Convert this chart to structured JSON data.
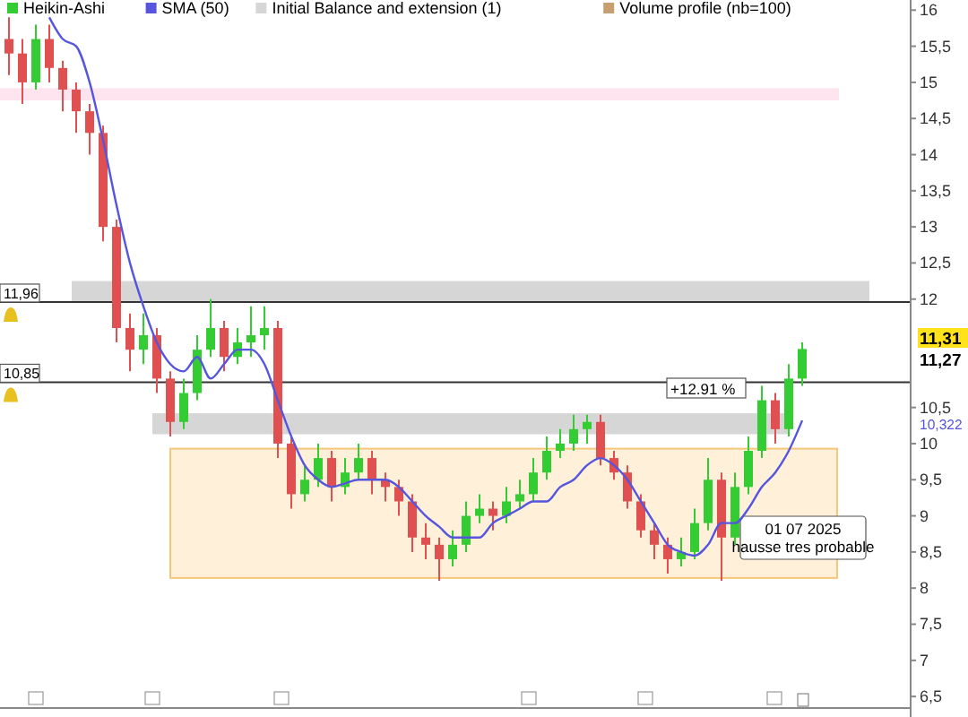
{
  "chart_data": {
    "type": "candlestick",
    "categories": [
      null,
      null,
      null,
      null,
      null,
      null,
      null,
      null,
      null,
      null,
      null,
      null,
      null,
      null,
      null,
      null,
      null,
      null,
      null,
      null,
      null,
      null,
      null,
      null,
      null,
      null,
      null,
      null,
      null,
      null,
      null,
      null,
      null,
      null,
      null,
      null,
      null,
      null,
      null,
      null,
      null,
      null,
      null,
      null,
      null,
      null,
      null,
      null,
      null,
      null,
      null,
      null,
      null,
      null,
      null,
      null,
      null,
      null,
      null,
      null
    ],
    "series": [
      {
        "name": "Heikin-Ashi",
        "color": "#33cc33",
        "colors": [
          "#e05050",
          "#e05050",
          "#33cc33",
          "#e05050",
          "#e05050",
          "#e05050",
          "#e05050",
          "#e05050",
          "#e05050",
          "#e05050",
          "#33cc33",
          "#e05050",
          "#e05050",
          "#33cc33",
          "#33cc33",
          "#33cc33",
          "#e05050",
          "#33cc33",
          "#33cc33",
          "#33cc33",
          "#e05050",
          "#e05050",
          "#33cc33",
          "#33cc33",
          "#e05050",
          "#33cc33",
          "#33cc33",
          "#e05050",
          "#e05050",
          "#e05050",
          "#e05050",
          "#e05050",
          "#e05050",
          "#33cc33",
          "#33cc33",
          "#33cc33",
          "#e05050",
          "#33cc33",
          "#33cc33",
          "#33cc33",
          "#33cc33",
          "#33cc33",
          "#33cc33",
          "#33cc33",
          "#e05050",
          "#e05050",
          "#e05050",
          "#e05050",
          "#e05050",
          "#e05050",
          "#33cc33",
          "#33cc33",
          "#33cc33",
          "#e05050",
          "#33cc33",
          "#33cc33",
          "#33cc33",
          "#e05050",
          "#33cc33",
          "#33cc33"
        ],
        "ohlc": [
          [
            15.6,
            15.9,
            15.1,
            15.4
          ],
          [
            15.4,
            15.6,
            14.7,
            15.0
          ],
          [
            15.0,
            15.8,
            14.9,
            15.6
          ],
          [
            15.6,
            15.8,
            15.0,
            15.2
          ],
          [
            15.2,
            15.3,
            14.6,
            14.9
          ],
          [
            14.9,
            15.0,
            14.3,
            14.6
          ],
          [
            14.6,
            14.7,
            14.0,
            14.3
          ],
          [
            14.3,
            14.4,
            12.8,
            13.0
          ],
          [
            13.0,
            13.1,
            11.4,
            11.6
          ],
          [
            11.6,
            11.8,
            11.0,
            11.3
          ],
          [
            11.3,
            11.8,
            11.1,
            11.5
          ],
          [
            11.5,
            11.6,
            10.7,
            10.9
          ],
          [
            10.9,
            11.0,
            10.1,
            10.3
          ],
          [
            10.3,
            10.9,
            10.2,
            10.7
          ],
          [
            10.7,
            11.5,
            10.6,
            11.3
          ],
          [
            11.3,
            12.0,
            11.2,
            11.6
          ],
          [
            11.6,
            11.7,
            11.0,
            11.2
          ],
          [
            11.2,
            11.6,
            11.1,
            11.4
          ],
          [
            11.4,
            11.9,
            11.2,
            11.5
          ],
          [
            11.5,
            11.9,
            11.3,
            11.6
          ],
          [
            11.6,
            11.7,
            9.8,
            10.0
          ],
          [
            10.0,
            10.1,
            9.1,
            9.3
          ],
          [
            9.3,
            9.7,
            9.2,
            9.5
          ],
          [
            9.5,
            10.0,
            9.4,
            9.8
          ],
          [
            9.8,
            9.9,
            9.2,
            9.4
          ],
          [
            9.4,
            9.8,
            9.3,
            9.6
          ],
          [
            9.6,
            10.0,
            9.5,
            9.8
          ],
          [
            9.8,
            9.9,
            9.3,
            9.5
          ],
          [
            9.5,
            9.6,
            9.2,
            9.4
          ],
          [
            9.4,
            9.5,
            9.0,
            9.2
          ],
          [
            9.2,
            9.3,
            8.5,
            8.7
          ],
          [
            8.7,
            8.9,
            8.4,
            8.6
          ],
          [
            8.6,
            8.7,
            8.1,
            8.4
          ],
          [
            8.4,
            8.8,
            8.3,
            8.6
          ],
          [
            8.6,
            9.2,
            8.5,
            9.0
          ],
          [
            9.0,
            9.3,
            8.9,
            9.1
          ],
          [
            9.1,
            9.2,
            8.8,
            9.0
          ],
          [
            9.0,
            9.4,
            8.9,
            9.2
          ],
          [
            9.2,
            9.5,
            9.1,
            9.3
          ],
          [
            9.3,
            9.8,
            9.2,
            9.6
          ],
          [
            9.6,
            10.1,
            9.5,
            9.9
          ],
          [
            9.9,
            10.2,
            9.8,
            10.0
          ],
          [
            10.0,
            10.4,
            9.9,
            10.2
          ],
          [
            10.2,
            10.4,
            10.0,
            10.3
          ],
          [
            10.3,
            10.4,
            9.7,
            9.8
          ],
          [
            9.8,
            9.9,
            9.5,
            9.6
          ],
          [
            9.6,
            9.7,
            9.1,
            9.2
          ],
          [
            9.2,
            9.3,
            8.7,
            8.8
          ],
          [
            8.8,
            8.9,
            8.4,
            8.6
          ],
          [
            8.6,
            8.7,
            8.2,
            8.4
          ],
          [
            8.4,
            8.7,
            8.3,
            8.5
          ],
          [
            8.5,
            9.1,
            8.4,
            8.9
          ],
          [
            8.9,
            9.8,
            8.8,
            9.5
          ],
          [
            9.5,
            9.6,
            8.1,
            8.7
          ],
          [
            8.7,
            9.6,
            8.6,
            9.4
          ],
          [
            9.4,
            10.1,
            9.3,
            9.9
          ],
          [
            9.9,
            10.8,
            9.8,
            10.6
          ],
          [
            10.6,
            10.7,
            10.0,
            10.2
          ],
          [
            10.2,
            11.1,
            10.1,
            10.9
          ],
          [
            10.9,
            11.4,
            10.8,
            11.31
          ]
        ]
      },
      {
        "name": "SMA (50)",
        "type": "line",
        "color": "#5555dd",
        "values": [
          null,
          null,
          null,
          15.9,
          15.6,
          15.5,
          15.0,
          14.2,
          13.3,
          12.5,
          11.9,
          11.4,
          11.1,
          11.0,
          11.2,
          10.9,
          11.1,
          11.3,
          11.3,
          11.1,
          10.6,
          10.1,
          9.7,
          9.5,
          9.4,
          9.45,
          9.5,
          9.5,
          9.5,
          9.4,
          9.2,
          9.0,
          8.85,
          8.7,
          8.7,
          8.7,
          8.9,
          9.0,
          9.1,
          9.2,
          9.2,
          9.4,
          9.5,
          9.7,
          9.8,
          9.7,
          9.5,
          9.2,
          8.9,
          8.6,
          8.5,
          8.45,
          8.6,
          8.9,
          8.9,
          9.1,
          9.4,
          9.6,
          9.9,
          10.32
        ]
      }
    ],
    "ylim": [
      6.34,
      16.14
    ],
    "yticks": [
      {
        "value": 6.5,
        "label": "6,5"
      },
      7,
      {
        "value": 7.5,
        "label": "7,5"
      },
      8,
      {
        "value": 8.5,
        "label": "8,5"
      },
      9,
      {
        "value": 9.5,
        "label": "9,5"
      },
      10,
      {
        "value": 10.5,
        "label": "10,5"
      },
      12,
      {
        "value": 12.5,
        "label": "12,5"
      },
      13,
      {
        "value": 13.5,
        "label": "13,5"
      },
      14,
      {
        "value": 14.5,
        "label": "14,5"
      },
      15,
      {
        "value": 15.5,
        "label": "15,5"
      },
      16
    ],
    "ref_lines": [
      {
        "axis": "y",
        "value": 11.96,
        "label": "11,96",
        "color": "#333333"
      },
      {
        "axis": "y",
        "value": 10.85,
        "label": "10,85",
        "color": "#333333"
      }
    ],
    "bands": [
      {
        "axis": "y",
        "from": 14.75,
        "to": 14.92,
        "color": "#fde4ef"
      },
      {
        "axis": "y",
        "from": 11.96,
        "to": 12.25,
        "color": "#d6d6d6",
        "label": "Initial Balance and extension (1)"
      },
      {
        "axis": "y",
        "from": 10.13,
        "to": 10.42,
        "color": "#d6d6d6"
      },
      {
        "axis": "y",
        "from": 8.14,
        "to": 9.93,
        "color": "#fff0d9"
      }
    ],
    "annotations": [
      "Volume profile (nb=100)",
      "+12.91 %",
      "01 07 2025\nhausse tres probable",
      "11,31",
      "11,27",
      "10,322"
    ],
    "legend": "top left",
    "tick_labels": "y"
  }
}
